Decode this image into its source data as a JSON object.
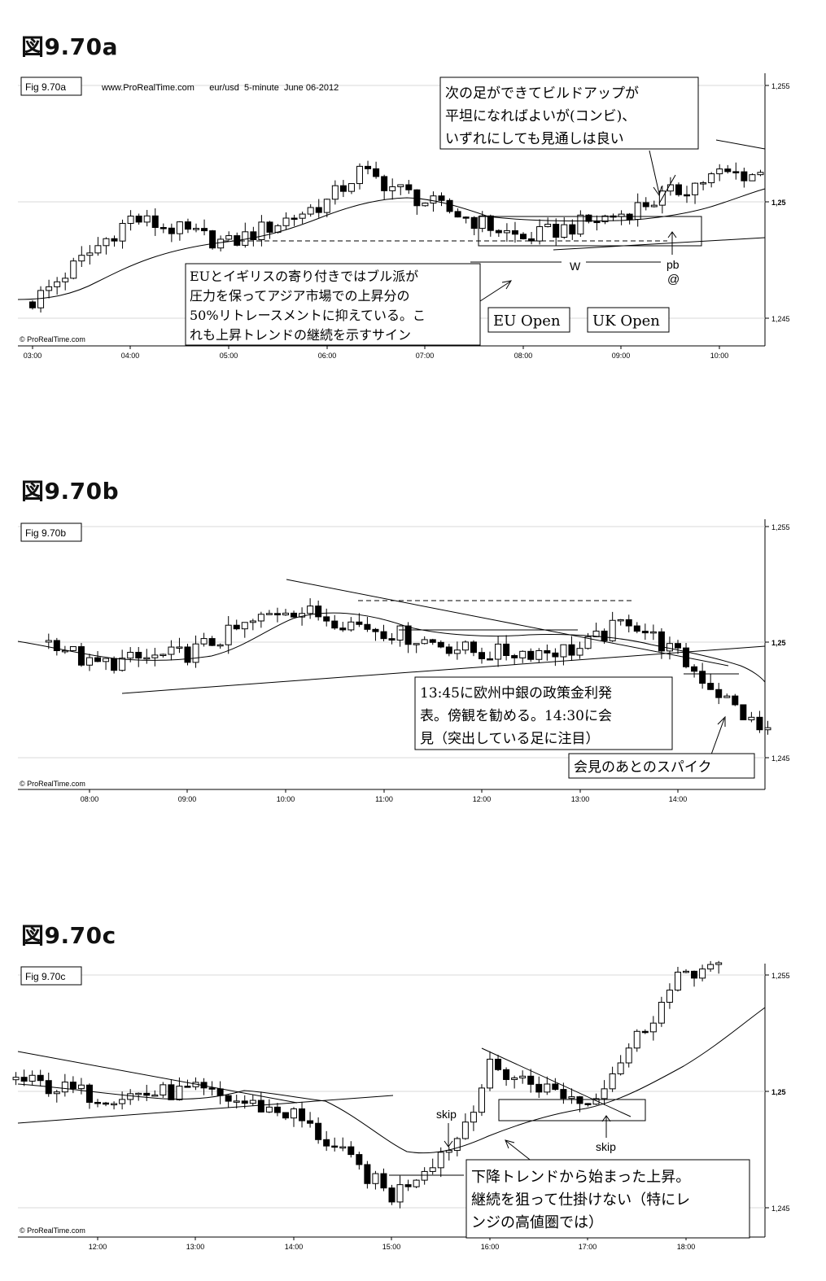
{
  "charts": [
    {
      "heading": "図9.70a",
      "fig_label": "Fig 9.70a",
      "header_line": "www.ProRealTime.com      eur/usd  5-minute  June 06-2012",
      "watermark": "© ProRealTime.com",
      "y_ticks": [
        "1,255",
        "1,25",
        "1,245"
      ],
      "x_ticks": [
        "03:00",
        "04:00",
        "05:00",
        "06:00",
        "07:00",
        "08:00",
        "09:00",
        "10:00"
      ],
      "annotations": [
        {
          "lines": [
            "次の足ができてビルドアップが",
            "平坦になればよいが(コンビ)、",
            "いずれにしても見通しは良い"
          ]
        },
        {
          "lines": [
            "EUとイギリスの寄り付きではブル派が",
            "圧力を保ってアジア市場での上昇分の",
            "50%リトレースメントに抑えている。こ",
            "れも上昇トレンドの継続を示すサイン"
          ]
        },
        {
          "lines": [
            "EU Open"
          ]
        },
        {
          "lines": [
            "UK Open"
          ]
        }
      ],
      "labels": [
        "W",
        "pb",
        "@"
      ]
    },
    {
      "heading": "図9.70b",
      "fig_label": "Fig 9.70b",
      "header_line": "",
      "watermark": "© ProRealTime.com",
      "y_ticks": [
        "1,255",
        "1,25",
        "1,245"
      ],
      "x_ticks": [
        "08:00",
        "09:00",
        "10:00",
        "11:00",
        "12:00",
        "13:00",
        "14:00"
      ],
      "annotations": [
        {
          "lines": [
            "13:45に欧州中銀の政策金利発",
            "表。傍観を勧める。14:30に会",
            "見（突出している足に注目）"
          ]
        },
        {
          "lines": [
            "会見のあとのスパイク"
          ]
        }
      ],
      "labels": []
    },
    {
      "heading": "図9.70c",
      "fig_label": "Fig 9.70c",
      "header_line": "",
      "watermark": "© ProRealTime.com",
      "y_ticks": [
        "1,255",
        "1,25",
        "1,245"
      ],
      "x_ticks": [
        "12:00",
        "13:00",
        "14:00",
        "15:00",
        "16:00",
        "17:00",
        "18:00"
      ],
      "annotations": [
        {
          "lines": [
            "下降トレンドから始まった上昇。",
            "継続を狙って仕掛けない（特にレ",
            "ンジの高値圏では）"
          ]
        }
      ],
      "labels": [
        "skip",
        "skip"
      ]
    }
  ],
  "chart_data": [
    {
      "type": "candlestick",
      "title": "Fig 9.70a",
      "instrument": "eur/usd",
      "timeframe": "5-minute",
      "date": "June 06-2012",
      "ylim": [
        1.244,
        1.256
      ],
      "x_ticks": [
        "03:00",
        "04:00",
        "05:00",
        "06:00",
        "07:00",
        "08:00",
        "09:00",
        "10:00"
      ],
      "moving_average": "20-bar",
      "key_prices": [
        {
          "time": "03:00",
          "close": 1.2457
        },
        {
          "time": "04:00",
          "close": 1.2493
        },
        {
          "time": "05:00",
          "close": 1.2482
        },
        {
          "time": "06:00",
          "close": 1.25
        },
        {
          "time": "06:20",
          "close": 1.2513
        },
        {
          "time": "07:00",
          "close": 1.25
        },
        {
          "time": "08:00",
          "close": 1.2484
        },
        {
          "time": "09:00",
          "close": 1.2495
        },
        {
          "time": "10:00",
          "close": 1.2512
        }
      ]
    },
    {
      "type": "candlestick",
      "title": "Fig 9.70b",
      "ylim": [
        1.244,
        1.256
      ],
      "x_ticks": [
        "08:00",
        "09:00",
        "10:00",
        "11:00",
        "12:00",
        "13:00",
        "14:00"
      ],
      "moving_average": "20-bar",
      "key_prices": [
        {
          "time": "07:40",
          "close": 1.25
        },
        {
          "time": "08:00",
          "close": 1.249
        },
        {
          "time": "09:00",
          "close": 1.2495
        },
        {
          "time": "10:00",
          "close": 1.2515
        },
        {
          "time": "11:00",
          "close": 1.2505
        },
        {
          "time": "12:00",
          "close": 1.2495
        },
        {
          "time": "13:00",
          "close": 1.2497
        },
        {
          "time": "13:30",
          "close": 1.251
        },
        {
          "time": "14:00",
          "close": 1.2494
        },
        {
          "time": "14:50",
          "close": 1.2462
        }
      ]
    },
    {
      "type": "candlestick",
      "title": "Fig 9.70c",
      "ylim": [
        1.244,
        1.256
      ],
      "x_ticks": [
        "12:00",
        "13:00",
        "14:00",
        "15:00",
        "16:00",
        "17:00",
        "18:00"
      ],
      "moving_average": "20-bar",
      "key_prices": [
        {
          "time": "11:10",
          "close": 1.2505
        },
        {
          "time": "12:00",
          "close": 1.2498
        },
        {
          "time": "13:00",
          "close": 1.25
        },
        {
          "time": "14:00",
          "close": 1.249
        },
        {
          "time": "15:00",
          "close": 1.2455
        },
        {
          "time": "15:40",
          "close": 1.248
        },
        {
          "time": "16:00",
          "close": 1.251
        },
        {
          "time": "17:00",
          "close": 1.2495
        },
        {
          "time": "18:00",
          "close": 1.2552
        }
      ]
    }
  ]
}
